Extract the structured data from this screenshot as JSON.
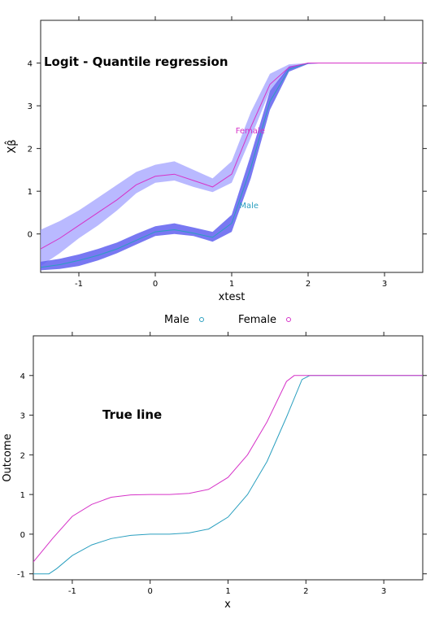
{
  "chart_data": [
    {
      "type": "line",
      "title": "Logit - Quantile regression",
      "xlabel": "xtest",
      "ylabel": "Xβ̂",
      "xlim": [
        -1.5,
        3.5
      ],
      "ylim": [
        -0.9,
        5.0
      ],
      "xticks": [
        -1,
        0,
        1,
        2,
        3
      ],
      "yticks": [
        0,
        1,
        2,
        3,
        4
      ],
      "grid": false,
      "legend_position": "bottom",
      "series": [
        {
          "name": "Male",
          "color": "#2a9fbf",
          "band_color": "#6060f0",
          "x": [
            -1.5,
            -1.25,
            -1.0,
            -0.75,
            -0.5,
            -0.25,
            0.0,
            0.25,
            0.5,
            0.75,
            1.0,
            1.25,
            1.5,
            1.75,
            2.0,
            2.25,
            2.5,
            3.0,
            3.5
          ],
          "y": [
            -0.78,
            -0.72,
            -0.62,
            -0.5,
            -0.35,
            -0.15,
            0.05,
            0.1,
            0.02,
            -0.08,
            0.25,
            1.55,
            3.1,
            3.85,
            4.0,
            4.0,
            4.0,
            4.0,
            4.0
          ],
          "lower": [
            -0.85,
            -0.82,
            -0.75,
            -0.62,
            -0.45,
            -0.25,
            -0.05,
            0.0,
            -0.05,
            -0.18,
            0.05,
            1.3,
            2.9,
            3.8,
            3.98,
            4.0,
            4.0,
            4.0,
            4.0
          ],
          "upper": [
            -0.65,
            -0.58,
            -0.48,
            -0.35,
            -0.2,
            0.0,
            0.18,
            0.25,
            0.15,
            0.05,
            0.45,
            1.85,
            3.35,
            3.92,
            4.0,
            4.0,
            4.0,
            4.0,
            4.0
          ]
        },
        {
          "name": "Female",
          "color": "#d633c8",
          "band_color": "#a8a8ff",
          "x": [
            -1.5,
            -1.25,
            -1.0,
            -0.75,
            -0.5,
            -0.25,
            0.0,
            0.25,
            0.5,
            0.75,
            1.0,
            1.25,
            1.5,
            1.75,
            2.0,
            2.25,
            2.5,
            3.0,
            3.5
          ],
          "y": [
            -0.35,
            -0.1,
            0.2,
            0.5,
            0.8,
            1.15,
            1.35,
            1.4,
            1.25,
            1.1,
            1.4,
            2.5,
            3.5,
            3.9,
            4.0,
            4.0,
            4.0,
            4.0,
            4.0
          ],
          "lower": [
            -0.75,
            -0.45,
            -0.1,
            0.2,
            0.55,
            0.95,
            1.2,
            1.25,
            1.1,
            0.98,
            1.2,
            2.25,
            3.35,
            3.85,
            3.98,
            4.0,
            4.0,
            4.0,
            4.0
          ],
          "upper": [
            0.1,
            0.3,
            0.55,
            0.85,
            1.15,
            1.45,
            1.62,
            1.7,
            1.5,
            1.3,
            1.7,
            2.85,
            3.75,
            3.97,
            4.0,
            4.0,
            4.0,
            4.0,
            4.0
          ]
        }
      ],
      "annotations": [
        {
          "text": "Female",
          "x": 1.05,
          "y": 2.35,
          "color": "#d633c8"
        },
        {
          "text": "Male",
          "x": 1.1,
          "y": 0.6,
          "color": "#2a9fbf"
        }
      ],
      "legend": [
        {
          "label": "Male",
          "color": "#2a9fbf"
        },
        {
          "label": "Female",
          "color": "#d633c8"
        }
      ]
    },
    {
      "type": "line",
      "title": "True line",
      "xlabel": "x",
      "ylabel": "Outcome",
      "xlim": [
        -1.5,
        3.5
      ],
      "ylim": [
        -1.15,
        5.0
      ],
      "xticks": [
        -1,
        0,
        1,
        2,
        3
      ],
      "yticks": [
        -1,
        0,
        1,
        2,
        3,
        4
      ],
      "grid": false,
      "series": [
        {
          "name": "Male",
          "color": "#2a9fbf",
          "x": [
            -1.5,
            -1.3,
            -1.2,
            -1.0,
            -0.75,
            -0.5,
            -0.25,
            0.0,
            0.25,
            0.5,
            0.75,
            1.0,
            1.25,
            1.5,
            1.75,
            1.95,
            2.05,
            2.5,
            3.0,
            3.5
          ],
          "y": [
            -1.0,
            -1.0,
            -0.87,
            -0.54,
            -0.27,
            -0.11,
            -0.03,
            0.0,
            0.0,
            0.03,
            0.13,
            0.43,
            1.0,
            1.83,
            2.95,
            3.9,
            4.0,
            4.0,
            4.0,
            4.0
          ]
        },
        {
          "name": "Female",
          "color": "#d633c8",
          "x": [
            -1.5,
            -1.25,
            -1.0,
            -0.75,
            -0.5,
            -0.25,
            0.0,
            0.25,
            0.5,
            0.75,
            1.0,
            1.25,
            1.5,
            1.75,
            1.85,
            2.0,
            2.5,
            3.0,
            3.5
          ],
          "y": [
            -0.7,
            -0.1,
            0.45,
            0.75,
            0.93,
            0.99,
            1.0,
            1.0,
            1.03,
            1.13,
            1.43,
            2.0,
            2.83,
            3.85,
            4.0,
            4.0,
            4.0,
            4.0,
            4.0
          ]
        }
      ]
    }
  ]
}
